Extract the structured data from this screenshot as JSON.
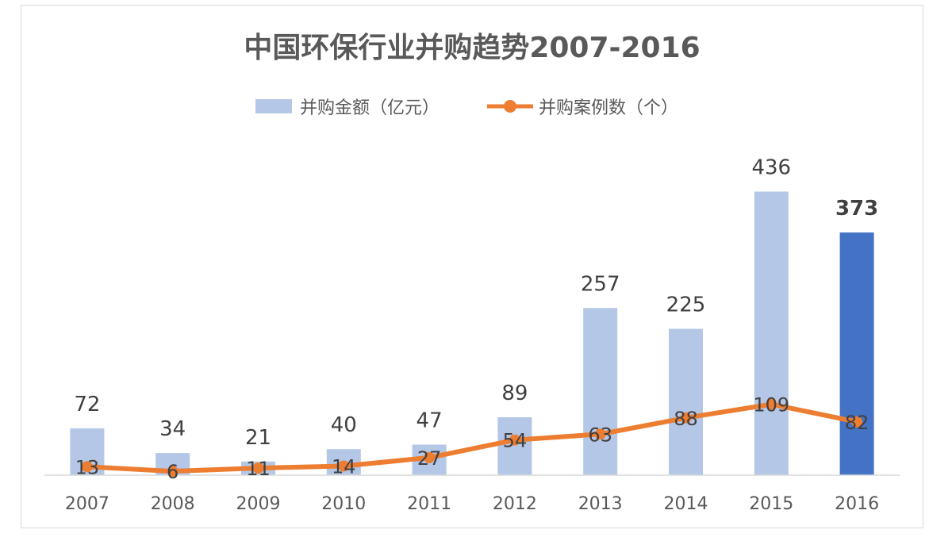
{
  "chart_data": {
    "type": "bar",
    "title": "中国环保行业并购趋势2007-2016",
    "categories": [
      "2007",
      "2008",
      "2009",
      "2010",
      "2011",
      "2012",
      "2013",
      "2014",
      "2015",
      "2016"
    ],
    "series": [
      {
        "name": "并购金额（亿元）",
        "type": "bar",
        "values": [
          72,
          34,
          21,
          40,
          47,
          89,
          257,
          225,
          436,
          373
        ],
        "color": "#b4c7e7",
        "highlight_index": 9,
        "highlight_color": "#4472c4"
      },
      {
        "name": "并购案例数（个）",
        "type": "line",
        "values": [
          13,
          6,
          11,
          14,
          27,
          54,
          63,
          88,
          109,
          82
        ],
        "color": "#ed7d31"
      }
    ],
    "ylim": [
      0,
      480
    ],
    "grid": false,
    "legend_position": "top-center"
  }
}
